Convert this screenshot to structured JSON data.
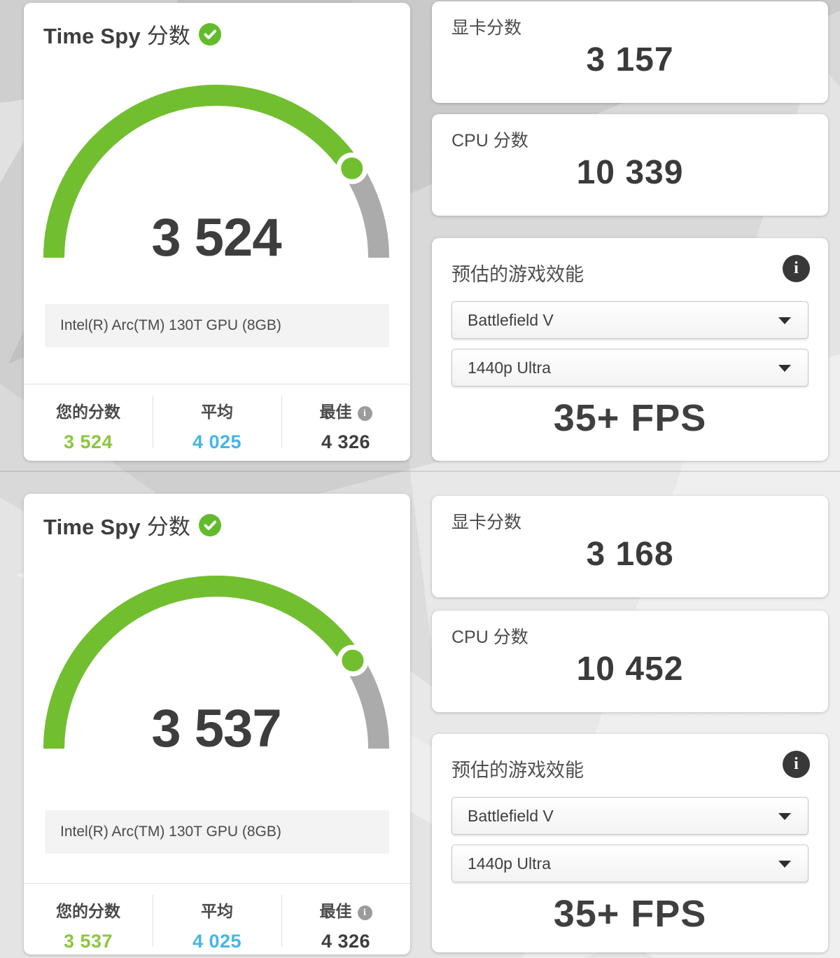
{
  "colors": {
    "accent_green": "#71bf2e",
    "value_green": "#8cc63f",
    "average_blue": "#45b6e6",
    "gauge_gray": "#ababab",
    "text_dark": "#3d3d3d"
  },
  "icons": {
    "info_glyph": "i"
  },
  "results": [
    {
      "title_en": "Time Spy",
      "title_suffix": "分数",
      "score_display": "3 524",
      "gauge": {
        "score": 3524,
        "best": 4326
      },
      "gpu_name": "Intel(R) Arc(TM) 130T GPU (8GB)",
      "stats": {
        "your_label": "您的分数",
        "your_value": "3 524",
        "average_label": "平均",
        "average_value": "4 025",
        "best_label": "最佳",
        "best_value": "4 326"
      },
      "graphics_label": "显卡分数",
      "graphics_value": "3 157",
      "cpu_label": "CPU 分数",
      "cpu_value": "10 339",
      "game": {
        "title": "预估的游戏效能",
        "game_option": "Battlefield V",
        "quality_option": "1440p Ultra",
        "fps": "35+ FPS"
      }
    },
    {
      "title_en": "Time Spy",
      "title_suffix": "分数",
      "score_display": "3 537",
      "gauge": {
        "score": 3537,
        "best": 4326
      },
      "gpu_name": "Intel(R) Arc(TM) 130T GPU (8GB)",
      "stats": {
        "your_label": "您的分数",
        "your_value": "3 537",
        "average_label": "平均",
        "average_value": "4 025",
        "best_label": "最佳",
        "best_value": "4 326"
      },
      "graphics_label": "显卡分数",
      "graphics_value": "3 168",
      "cpu_label": "CPU 分数",
      "cpu_value": "10 452",
      "game": {
        "title": "预估的游戏效能",
        "game_option": "Battlefield V",
        "quality_option": "1440p Ultra",
        "fps": "35+ FPS"
      }
    }
  ]
}
